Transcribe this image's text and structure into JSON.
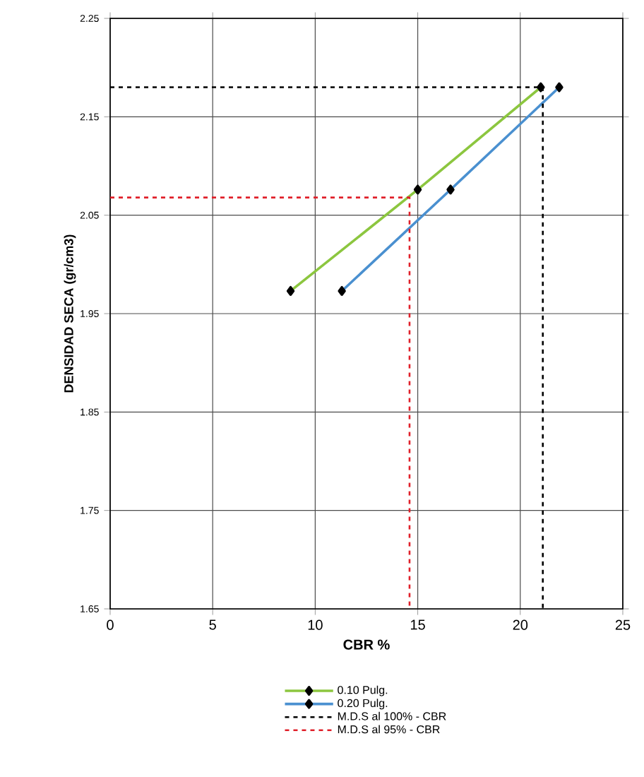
{
  "chart_data": {
    "type": "line",
    "xlabel": "CBR %",
    "ylabel": "DENSIDAD SECA (gr/cm3)",
    "xlim": [
      0,
      25
    ],
    "xticks": [
      0,
      5,
      10,
      15,
      20,
      25
    ],
    "ylim": [
      1.65,
      2.25
    ],
    "yticks": [
      1.65,
      1.75,
      1.85,
      1.95,
      2.05,
      2.15,
      2.25
    ],
    "grid": true,
    "legend": "bottom",
    "marker": "diamond",
    "line_style": "solid",
    "series": [
      {
        "name": "0.10 Pulg.",
        "color": "#8cc63f",
        "x": [
          8.8,
          15.0,
          21.0
        ],
        "values": [
          1.973,
          2.076,
          2.18
        ]
      },
      {
        "name": "0.20 Pulg.",
        "color": "#4a90d0",
        "x": [
          11.3,
          16.6,
          21.9
        ],
        "values": [
          1.973,
          2.076,
          2.18
        ]
      },
      {
        "name": "M.D.S al 100% - CBR",
        "color": "#000000",
        "marker": "none",
        "line_style": "dashed",
        "x": [
          0,
          21.1,
          21.1
        ],
        "values": [
          2.18,
          2.18,
          1.65
        ]
      },
      {
        "name": "M.D.S al 95% - CBR",
        "color": "#e0202a",
        "marker": "none",
        "line_style": "dashed",
        "x": [
          0,
          14.6,
          14.6
        ],
        "values": [
          2.068,
          2.068,
          1.65
        ]
      }
    ]
  }
}
